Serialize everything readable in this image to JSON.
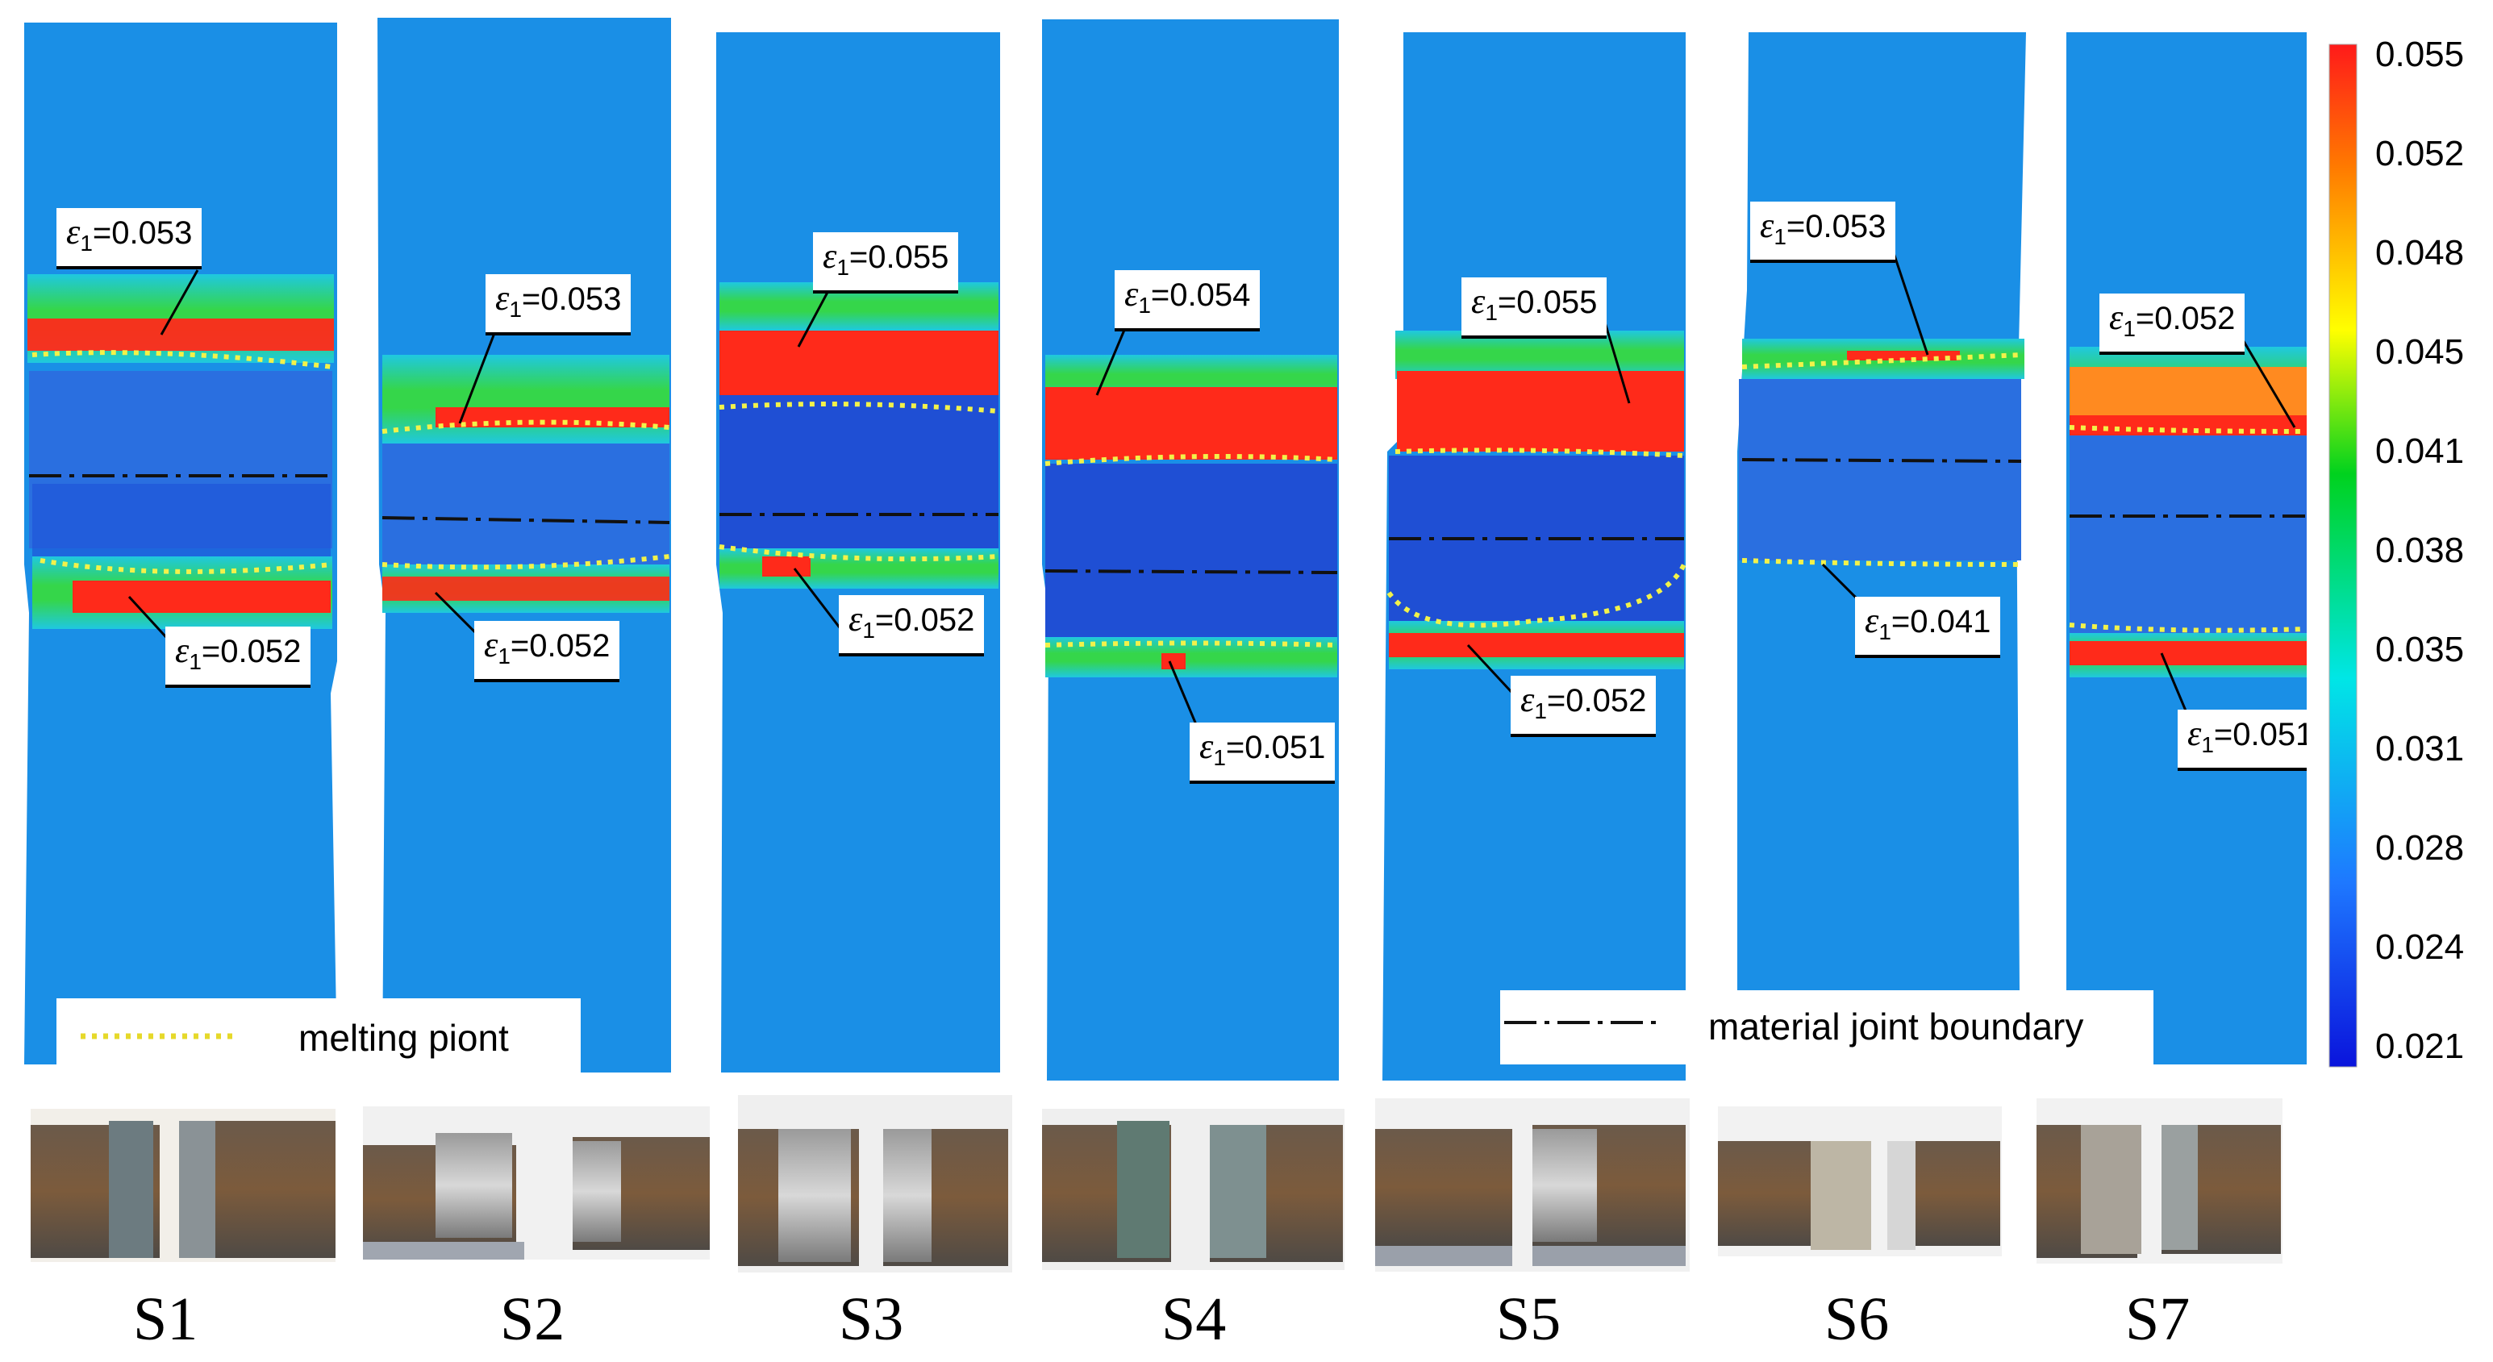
{
  "colorbar": {
    "ticks": [
      "0.055",
      "0.052",
      "0.048",
      "0.045",
      "0.041",
      "0.038",
      "0.035",
      "0.031",
      "0.028",
      "0.024",
      "0.021"
    ],
    "colors": [
      "#ff1a1a",
      "#ff8c00",
      "#ffff00",
      "#00d21e",
      "#00e6e6",
      "#1e78ff",
      "#0a14dc"
    ]
  },
  "legend": {
    "melting_point": "melting piont",
    "joint_boundary": "material joint boundary"
  },
  "strain_symbol": "ε",
  "strain_subscript": "1",
  "specimens": [
    {
      "caption": "S1",
      "upper_strain": "=0.053",
      "lower_strain": "=0.052"
    },
    {
      "caption": "S2",
      "upper_strain": "=0.053",
      "lower_strain": "=0.052"
    },
    {
      "caption": "S3",
      "upper_strain": "=0.055",
      "lower_strain": "=0.052"
    },
    {
      "caption": "S4",
      "upper_strain": "=0.054",
      "lower_strain": "=0.051"
    },
    {
      "caption": "S5",
      "upper_strain": "=0.055",
      "lower_strain": "=0.052"
    },
    {
      "caption": "S6",
      "upper_strain": "=0.053",
      "lower_strain": "=0.041"
    },
    {
      "caption": "S7",
      "upper_strain": "=0.052",
      "lower_strain": "=0.051"
    }
  ]
}
